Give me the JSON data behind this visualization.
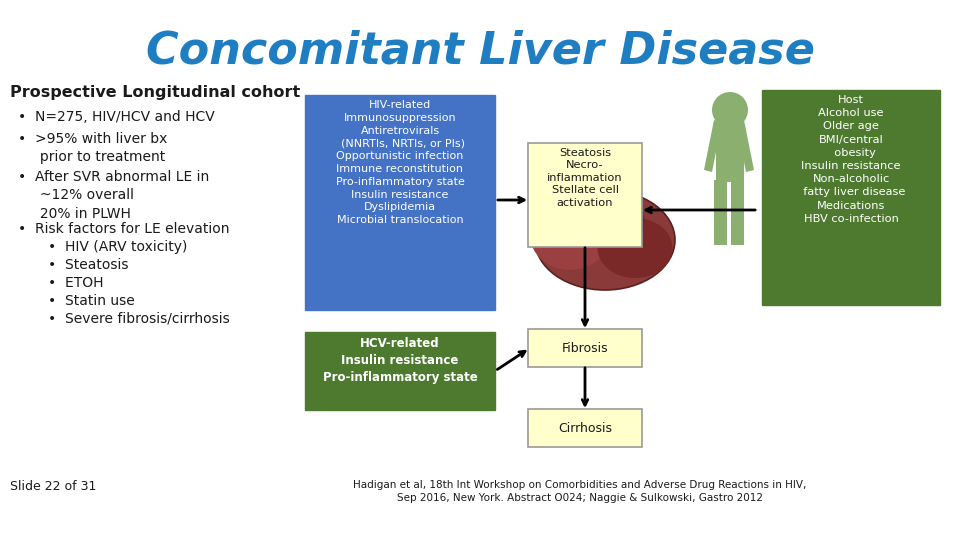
{
  "title": "Concomitant Liver Disease",
  "title_color": "#1F7EC2",
  "title_fontsize": 32,
  "bg_color": "#FFFFFF",
  "left_text_header": "Prospective Longitudinal cohort",
  "blue_box_text": "HIV-related\nImmunosuppression\nAntiretrovirals\n  (NNRTIs, NRTIs, or PIs)\nOpportunistic infection\nImmune reconstitution\nPro-inflammatory state\nInsulin resistance\nDyslipidemia\nMicrobial translocation",
  "blue_box_color": "#4472C4",
  "green_box_text": "HCV-related\nInsulin resistance\nPro-inflammatory state",
  "green_box_color": "#4E7A2F",
  "yellow_box1_text": "Steatosis\nNecro-\ninflammation\nStellate cell\nactivation",
  "yellow_box_color": "#FFFFCC",
  "yellow_box_border": "#999999",
  "fibrosis_text": "Fibrosis",
  "cirrhosis_text": "Cirrhosis",
  "right_box_text": "Host\nAlcohol use\nOlder age\nBMI/central\n  obesity\nInsulin resistance\nNon-alcoholic\n  fatty liver disease\nMedications\nHBV co-infection",
  "right_box_color": "#4E7A2F",
  "person_color": "#8AAF6E",
  "slide_label": "Slide 22 of 31",
  "footer": "Hadigan et al, 18th Int Workshop on Comorbidities and Adverse Drug Reactions in HIV,\nSep 2016, New York. Abstract O024; Naggie & Sulkowski, Gastro 2012",
  "text_white": "#FFFFFF",
  "text_black": "#000000",
  "text_dark": "#1A1A1A",
  "liver_color": "#8B3A3A"
}
